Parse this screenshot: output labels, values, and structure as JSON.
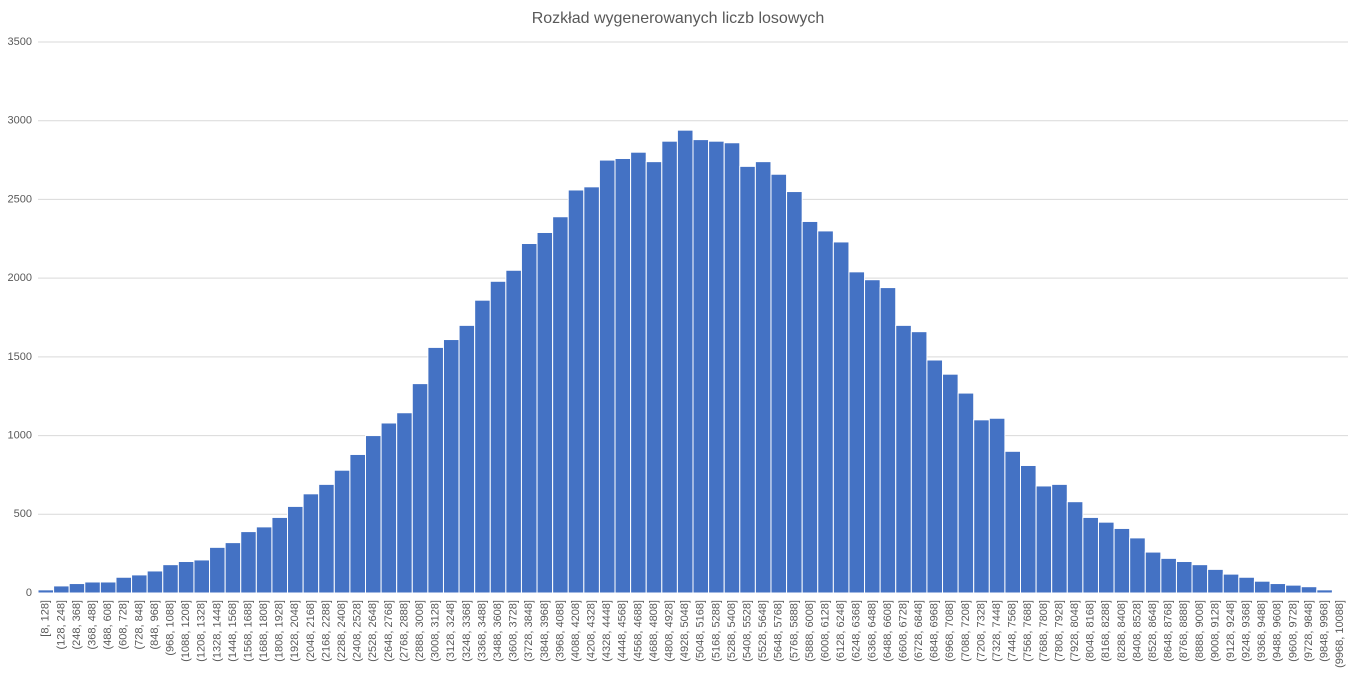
{
  "chart_data": {
    "type": "bar",
    "title": "Rozkład wygenerowanych liczb losowych",
    "categories": [
      "[8, 128]",
      "(128, 248]",
      "(248, 368]",
      "(368, 488]",
      "(488, 608]",
      "(608, 728]",
      "(728, 848]",
      "(848, 968]",
      "(968, 1088]",
      "(1088, 1208]",
      "(1208, 1328]",
      "(1328, 1448]",
      "(1448, 1568]",
      "(1568, 1688]",
      "(1688, 1808]",
      "(1808, 1928]",
      "(1928, 2048]",
      "(2048, 2168]",
      "(2168, 2288]",
      "(2288, 2408]",
      "(2408, 2528]",
      "(2528, 2648]",
      "(2648, 2768]",
      "(2768, 2888]",
      "(2888, 3008]",
      "(3008, 3128]",
      "(3128, 3248]",
      "(3248, 3368]",
      "(3368, 3488]",
      "(3488, 3608]",
      "(3608, 3728]",
      "(3728, 3848]",
      "(3848, 3968]",
      "(3968, 4088]",
      "(4088, 4208]",
      "(4208, 4328]",
      "(4328, 4448]",
      "(4448, 4568]",
      "(4568, 4688]",
      "(4688, 4808]",
      "(4808, 4928]",
      "(4928, 5048]",
      "(5048, 5168]",
      "(5168, 5288]",
      "(5288, 5408]",
      "(5408, 5528]",
      "(5528, 5648]",
      "(5648, 5768]",
      "(5768, 5888]",
      "(5888, 6008]",
      "(6008, 6128]",
      "(6128, 6248]",
      "(6248, 6368]",
      "(6368, 6488]",
      "(6488, 6608]",
      "(6608, 6728]",
      "(6728, 6848]",
      "(6848, 6968]",
      "(6968, 7088]",
      "(7088, 7208]",
      "(7208, 7328]",
      "(7328, 7448]",
      "(7448, 7568]",
      "(7568, 7688]",
      "(7688, 7808]",
      "(7808, 7928]",
      "(7928, 8048]",
      "(8048, 8168]",
      "(8168, 8288]",
      "(8288, 8408]",
      "(8408, 8528]",
      "(8528, 8648]",
      "(8648, 8768]",
      "(8768, 8888]",
      "(8888, 9008]",
      "(9008, 9128]",
      "(9128, 9248]",
      "(9248, 9368]",
      "(9368, 9488]",
      "(9488, 9608]",
      "(9608, 9728]",
      "(9728, 9848]",
      "(9848, 9968]",
      "(9968, 10088]"
    ],
    "values": [
      20,
      45,
      60,
      70,
      70,
      100,
      115,
      140,
      180,
      200,
      210,
      290,
      320,
      390,
      420,
      480,
      550,
      630,
      690,
      780,
      880,
      1000,
      1080,
      1145,
      1330,
      1560,
      1610,
      1700,
      1860,
      1980,
      2050,
      2220,
      2290,
      2390,
      2560,
      2580,
      2750,
      2760,
      2800,
      2740,
      2870,
      2940,
      2880,
      2870,
      2860,
      2710,
      2740,
      2660,
      2550,
      2360,
      2300,
      2230,
      2040,
      1990,
      1940,
      1700,
      1660,
      1480,
      1390,
      1270,
      1100,
      1110,
      900,
      810,
      680,
      690,
      580,
      480,
      450,
      410,
      350,
      260,
      220,
      200,
      180,
      150,
      120,
      100,
      75,
      60,
      50,
      40,
      20,
      5
    ],
    "color": "#4472c4",
    "ylim": [
      0,
      3500
    ],
    "yticks": [
      0,
      500,
      1000,
      1500,
      2000,
      2500,
      3000,
      3500
    ],
    "grid": true
  }
}
